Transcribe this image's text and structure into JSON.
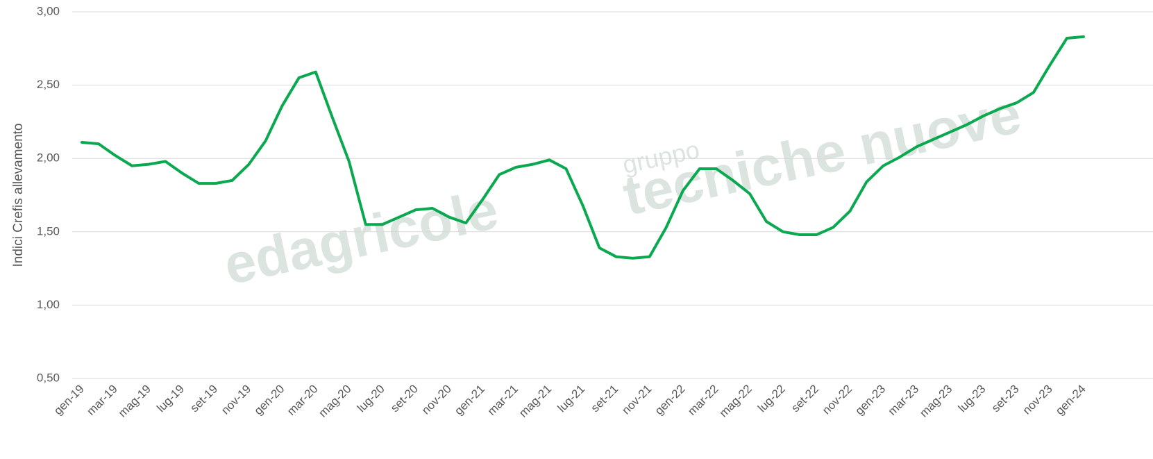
{
  "chart_data": {
    "type": "line",
    "y_label": "Indici Crefis allevamento",
    "watermark": [
      "edagricole",
      "gruppo",
      "tecniche nuove"
    ],
    "categories": [
      "gen-19",
      null,
      "mar-19",
      null,
      "mag-19",
      null,
      "lug-19",
      null,
      "set-19",
      null,
      "nov-19",
      null,
      "gen-20",
      null,
      "mar-20",
      null,
      "mag-20",
      null,
      "lug-20",
      null,
      "set-20",
      null,
      "nov-20",
      null,
      "gen-21",
      null,
      "mar-21",
      null,
      "mag-21",
      null,
      "lug-21",
      null,
      "set-21",
      null,
      "nov-21",
      null,
      "gen-22",
      null,
      "mar-22",
      null,
      "mag-22",
      null,
      "lug-22",
      null,
      "set-22",
      null,
      "nov-22",
      null,
      "gen-23",
      null,
      "mar-23",
      null,
      "mag-23",
      null,
      "lug-23",
      null,
      "set-23",
      null,
      "nov-23",
      null,
      "gen-24"
    ],
    "series": [
      {
        "name": "Indici Crefis allevamento",
        "color": "#0aa84f",
        "values": [
          2.11,
          2.1,
          2.02,
          1.95,
          1.96,
          1.98,
          1.9,
          1.83,
          1.83,
          1.85,
          1.96,
          2.12,
          2.36,
          2.55,
          2.59,
          2.28,
          1.98,
          1.55,
          1.55,
          1.6,
          1.65,
          1.66,
          1.6,
          1.56,
          1.72,
          1.89,
          1.94,
          1.96,
          1.99,
          1.93,
          1.68,
          1.39,
          1.33,
          1.32,
          1.33,
          1.53,
          1.78,
          1.93,
          1.93,
          1.85,
          1.76,
          1.57,
          1.5,
          1.48,
          1.48,
          1.53,
          1.64,
          1.84,
          1.95,
          2.01,
          2.08,
          2.13,
          2.18,
          2.23,
          2.29,
          2.34,
          2.38,
          2.45,
          2.64,
          2.82,
          2.83
        ]
      }
    ],
    "ylim": [
      0.5,
      3.0
    ],
    "yticks": [
      {
        "value": 0.5,
        "label": "0,50"
      },
      {
        "value": 1.0,
        "label": "1,00"
      },
      {
        "value": 1.5,
        "label": "1,50"
      },
      {
        "value": 2.0,
        "label": "2,00"
      },
      {
        "value": 2.5,
        "label": "2,50"
      },
      {
        "value": 3.0,
        "label": "3,00"
      }
    ],
    "grid": true
  }
}
